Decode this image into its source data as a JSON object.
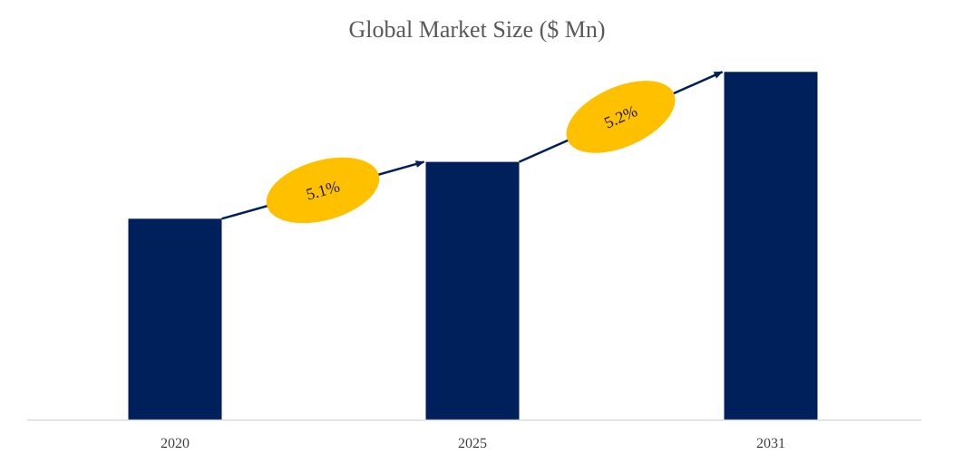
{
  "chart_data": {
    "type": "bar",
    "title": "Global Market Size ($ Mn)",
    "categories": [
      "2020",
      "2025",
      "2031"
    ],
    "values": [
      100,
      128.3,
      173.1
    ],
    "ylim": [
      0,
      180
    ],
    "grid": false,
    "legend": "none",
    "growth_annotations": [
      {
        "from": "2020",
        "to": "2025",
        "label": "5.1%"
      },
      {
        "from": "2025",
        "to": "2031",
        "label": "5.2%"
      }
    ],
    "colors": {
      "bar": "#00205b",
      "arrow": "#00205b",
      "bubble": "#ffc000",
      "axis": "#d9d9d9",
      "tick_label": "#404040",
      "title": "#595959"
    }
  }
}
